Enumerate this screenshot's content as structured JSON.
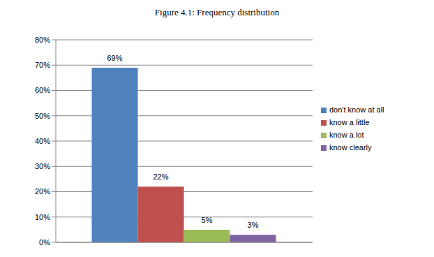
{
  "chart_data": {
    "type": "bar",
    "title": "Figure 4.1: Frequency distribution",
    "categories": [
      null
    ],
    "series": [
      {
        "name": "don't know at all",
        "color": "#4f81bd",
        "values": [
          69
        ],
        "value_labels": [
          "69%"
        ]
      },
      {
        "name": "know a little",
        "color": "#c0504d",
        "values": [
          22
        ],
        "value_labels": [
          "22%"
        ]
      },
      {
        "name": "know a lot",
        "color": "#9bbb59",
        "values": [
          5
        ],
        "value_labels": [
          "5%"
        ]
      },
      {
        "name": "know clearly",
        "color": "#8064a2",
        "values": [
          3
        ],
        "value_labels": [
          "3%"
        ]
      }
    ],
    "ylim": [
      0,
      80
    ],
    "yticks": [
      {
        "value": 0,
        "label": "0%"
      },
      {
        "value": 10,
        "label": "10%"
      },
      {
        "value": 20,
        "label": "20%"
      },
      {
        "value": 30,
        "label": "30%"
      },
      {
        "value": 40,
        "label": "40%"
      },
      {
        "value": 50,
        "label": "50%"
      },
      {
        "value": 60,
        "label": "60%"
      },
      {
        "value": 70,
        "label": "70%"
      },
      {
        "value": 80,
        "label": "80%"
      }
    ],
    "grid": true,
    "legend": "right",
    "data_labels": true,
    "tick_labels": "y"
  }
}
